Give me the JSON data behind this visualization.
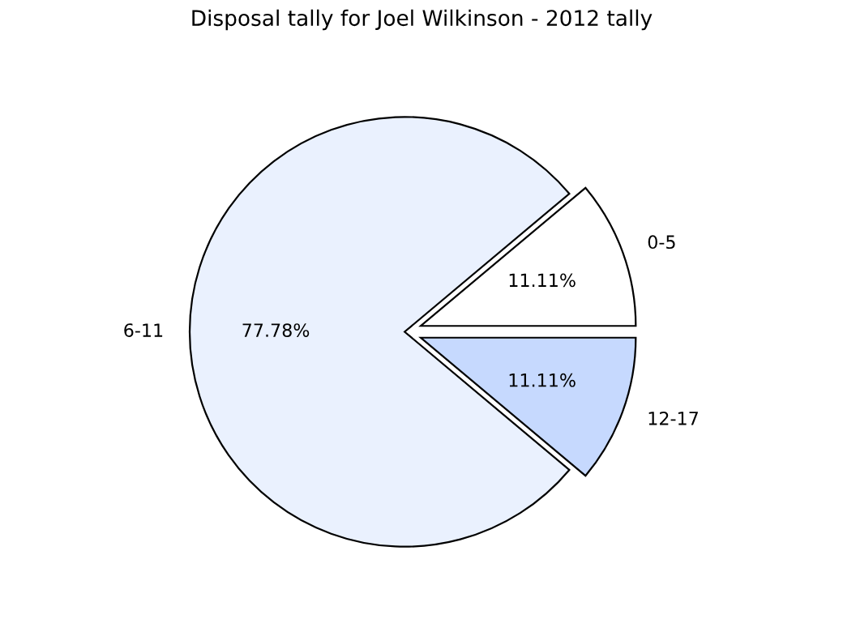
{
  "chart_data": {
    "type": "pie",
    "title": "Disposal tally for Joel Wilkinson - 2012 tally",
    "categories": [
      "0-5",
      "6-11",
      "12-17"
    ],
    "values": [
      11.11,
      77.78,
      11.11
    ],
    "colors": [
      "#ffffff",
      "#eaf1fe",
      "#c6d9fe"
    ],
    "value_labels": [
      "11.11%",
      "77.78%",
      "11.11%"
    ]
  }
}
